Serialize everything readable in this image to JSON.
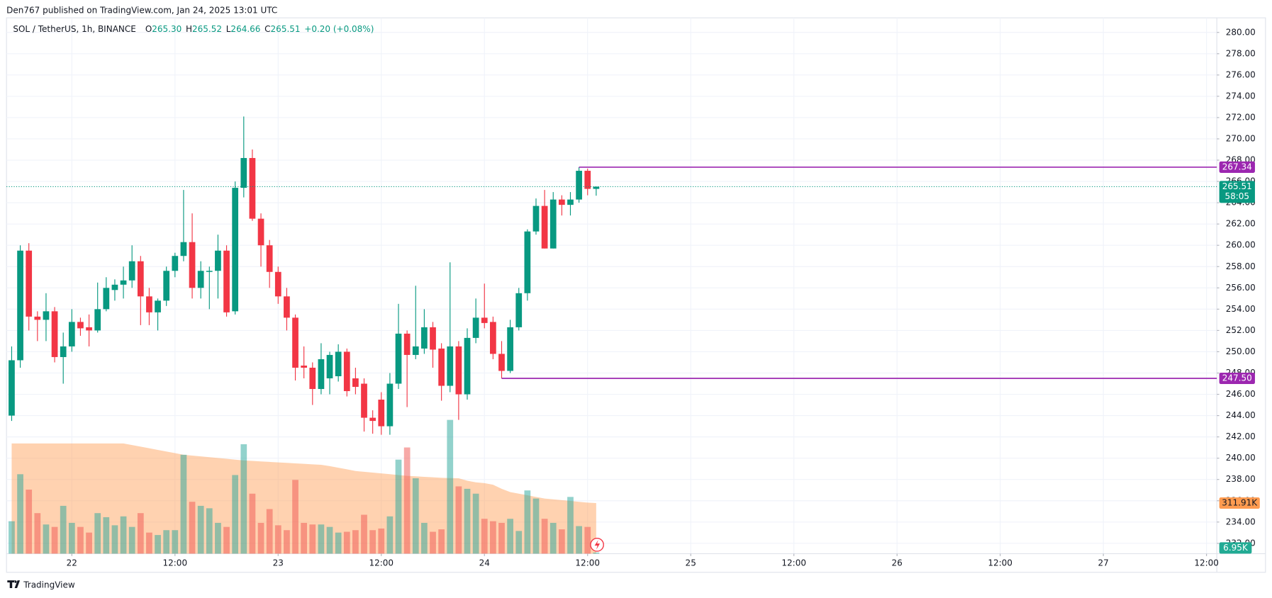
{
  "header": {
    "published": "Den767 published on TradingView.com, Jan 24, 2025 13:01 UTC",
    "footer_brand": "TradingView"
  },
  "legend": {
    "symbol": "SOL / TetherUS, 1h, BINANCE",
    "fields": [
      {
        "key": "O",
        "value": "265.30"
      },
      {
        "key": "H",
        "value": "265.52"
      },
      {
        "key": "L",
        "value": "264.66"
      },
      {
        "key": "C",
        "value": "265.51"
      }
    ],
    "change": "+0.20 (+0.08%)"
  },
  "chart_data": {
    "type": "candlestick",
    "up_color": "#089981",
    "down_color": "#f23645",
    "volume_up_color": "rgba(38,166,154,0.5)",
    "volume_down_color": "rgba(239,83,80,0.5)",
    "volume_ma_color": "#ff9b50",
    "open": [
      244.0,
      249.2,
      259.5,
      253.3,
      253.0,
      253.8,
      249.5,
      250.5,
      252.8,
      252.3,
      252.0,
      254.0,
      255.8,
      256.3,
      256.7,
      258.5,
      255.2,
      253.7,
      254.8,
      257.6,
      259.0,
      260.3,
      256.0,
      257.5,
      257.6,
      259.5,
      253.8,
      265.4,
      268.2,
      262.5,
      260.0,
      257.5,
      255.2,
      253.2,
      248.7,
      248.5,
      246.5,
      247.5,
      247.7,
      250.0,
      247.5,
      247.0,
      243.8,
      245.5,
      243.0,
      247.0,
      251.7,
      249.7,
      250.3,
      252.3,
      250.3,
      246.8,
      250.5,
      246.0,
      251.3,
      253.2,
      252.8,
      249.8,
      248.2,
      252.3,
      255.5,
      261.3,
      263.7,
      259.7,
      264.3,
      263.8,
      264.3,
      267.0,
      265.3
    ],
    "high": [
      250.5,
      260.0,
      260.2,
      253.8,
      255.5,
      254.2,
      251.8,
      254.0,
      253.2,
      253.5,
      256.5,
      257.0,
      256.8,
      258.0,
      260.0,
      259.0,
      256.0,
      255.0,
      258.0,
      259.3,
      265.2,
      263.0,
      258.5,
      258.0,
      261.0,
      260.0,
      266.0,
      272.1,
      269.0,
      263.0,
      260.5,
      258.0,
      256.0,
      253.5,
      250.5,
      249.0,
      250.8,
      250.0,
      250.7,
      250.3,
      248.5,
      247.5,
      244.5,
      246.2,
      248.0,
      254.5,
      252.0,
      256.2,
      254.0,
      252.8,
      250.8,
      258.4,
      251.0,
      252.2,
      255.0,
      256.4,
      253.3,
      251.0,
      253.0,
      256.0,
      261.5,
      264.4,
      265.2,
      265.0,
      264.7,
      265.0,
      267.34,
      267.2,
      265.52
    ],
    "low": [
      243.5,
      248.5,
      252.0,
      251.0,
      251.0,
      249.0,
      247.0,
      250.0,
      251.5,
      250.5,
      251.8,
      253.8,
      254.8,
      255.0,
      256.0,
      252.5,
      252.5,
      252.0,
      254.3,
      257.0,
      258.5,
      255.0,
      255.0,
      254.0,
      255.0,
      253.3,
      253.5,
      264.5,
      262.3,
      258.0,
      256.0,
      254.5,
      252.0,
      247.3,
      247.5,
      245.0,
      246.0,
      246.0,
      247.2,
      245.8,
      246.0,
      242.5,
      242.3,
      242.2,
      242.2,
      246.5,
      244.8,
      249.3,
      249.8,
      248.5,
      245.4,
      246.2,
      243.6,
      245.5,
      250.8,
      252.2,
      249.3,
      247.5,
      248.0,
      252.0,
      254.8,
      261.0,
      259.7,
      259.7,
      262.8,
      262.8,
      264.0,
      264.7,
      264.66
    ],
    "close": [
      249.2,
      259.5,
      253.3,
      253.0,
      253.8,
      249.5,
      250.5,
      252.8,
      252.2,
      252.0,
      254.0,
      256.0,
      256.3,
      256.7,
      258.5,
      255.2,
      253.7,
      254.8,
      257.6,
      259.0,
      260.3,
      256.0,
      257.6,
      257.6,
      259.5,
      253.7,
      265.4,
      268.2,
      262.5,
      260.0,
      257.5,
      255.2,
      253.2,
      248.5,
      248.5,
      246.5,
      249.3,
      249.7,
      250.0,
      246.3,
      246.7,
      243.8,
      243.5,
      243.0,
      247.0,
      251.7,
      249.7,
      250.5,
      252.3,
      250.2,
      246.8,
      250.5,
      246.0,
      251.3,
      253.2,
      252.7,
      249.8,
      248.2,
      252.3,
      255.5,
      261.3,
      263.7,
      259.7,
      264.3,
      263.8,
      264.3,
      267.0,
      265.3,
      265.51
    ],
    "volume": [
      200,
      490,
      395,
      250,
      180,
      165,
      295,
      190,
      165,
      130,
      250,
      225,
      175,
      230,
      165,
      250,
      130,
      115,
      145,
      145,
      610,
      320,
      295,
      280,
      190,
      165,
      485,
      675,
      370,
      190,
      275,
      175,
      145,
      455,
      190,
      180,
      180,
      165,
      130,
      135,
      145,
      240,
      145,
      155,
      230,
      580,
      655,
      465,
      190,
      135,
      150,
      825,
      415,
      400,
      370,
      215,
      200,
      190,
      215,
      140,
      390,
      340,
      215,
      190,
      150,
      350,
      170,
      165,
      6.95
    ],
    "volume_ma": [
      680,
      680,
      680,
      680,
      680,
      680,
      680,
      680,
      680,
      680,
      680,
      680,
      680,
      680,
      670,
      660,
      650,
      640,
      630,
      620,
      610,
      605,
      600,
      595,
      590,
      585,
      580,
      575,
      572,
      569,
      566,
      563,
      560,
      557,
      554,
      551,
      548,
      540,
      530,
      520,
      510,
      505,
      500,
      495,
      490,
      485,
      480,
      477,
      474,
      471,
      468,
      466,
      465,
      450,
      440,
      435,
      425,
      400,
      380,
      370,
      360,
      350,
      340,
      335,
      330,
      325,
      320,
      315,
      311.91
    ],
    "volume_ylim": [
      0,
      1000
    ],
    "xlim": [
      -0.6,
      140.2
    ],
    "xticks": [
      {
        "value": 7,
        "label": "22"
      },
      {
        "value": 19,
        "label": "12:00"
      },
      {
        "value": 31,
        "label": "23"
      },
      {
        "value": 43,
        "label": "12:00"
      },
      {
        "value": 55,
        "label": "24"
      },
      {
        "value": 67,
        "label": "12:00"
      },
      {
        "value": 79,
        "label": "25"
      },
      {
        "value": 91,
        "label": "12:00"
      },
      {
        "value": 103,
        "label": "26"
      },
      {
        "value": 115,
        "label": "12:00"
      },
      {
        "value": 127,
        "label": "27"
      },
      {
        "value": 139,
        "label": "12:00"
      }
    ],
    "ylim": [
      231.03,
      281.37
    ],
    "yticks": [
      {
        "value": 232,
        "label": "232.00"
      },
      {
        "value": 234,
        "label": "234.00"
      },
      {
        "value": 236,
        "label": "236.00"
      },
      {
        "value": 238,
        "label": "238.00"
      },
      {
        "value": 240,
        "label": "240.00"
      },
      {
        "value": 242,
        "label": "242.00"
      },
      {
        "value": 244,
        "label": "244.00"
      },
      {
        "value": 246,
        "label": "246.00"
      },
      {
        "value": 248,
        "label": "248.00"
      },
      {
        "value": 250,
        "label": "250.00"
      },
      {
        "value": 252,
        "label": "252.00"
      },
      {
        "value": 254,
        "label": "254.00"
      },
      {
        "value": 256,
        "label": "256.00"
      },
      {
        "value": 258,
        "label": "258.00"
      },
      {
        "value": 260,
        "label": "260.00"
      },
      {
        "value": 262,
        "label": "262.00"
      },
      {
        "value": 264,
        "label": "264.00"
      },
      {
        "value": 266,
        "label": "266.00"
      },
      {
        "value": 268,
        "label": "268.00"
      },
      {
        "value": 270,
        "label": "270.00"
      },
      {
        "value": 272,
        "label": "272.00"
      },
      {
        "value": 274,
        "label": "274.00"
      },
      {
        "value": 276,
        "label": "276.00"
      },
      {
        "value": 278,
        "label": "278.00"
      },
      {
        "value": 280,
        "label": "280.00"
      }
    ],
    "grid": true,
    "hlines": [
      {
        "value": 267.34,
        "label": "267.34",
        "x": 66,
        "color": "#9c27b0"
      },
      {
        "value": 247.5,
        "label": "247.50",
        "x": 57,
        "color": "#9c27b0"
      }
    ],
    "last_price": {
      "value": 265.51,
      "label": "265.51",
      "countdown": "58:05",
      "color": "#089981"
    },
    "volume_ma_label": {
      "value": 311.91,
      "label": "311.91K",
      "color": "#ff9b50"
    },
    "volume_last_label": {
      "value": 6.95,
      "label": "6.95K",
      "color": "#22ab94"
    }
  }
}
